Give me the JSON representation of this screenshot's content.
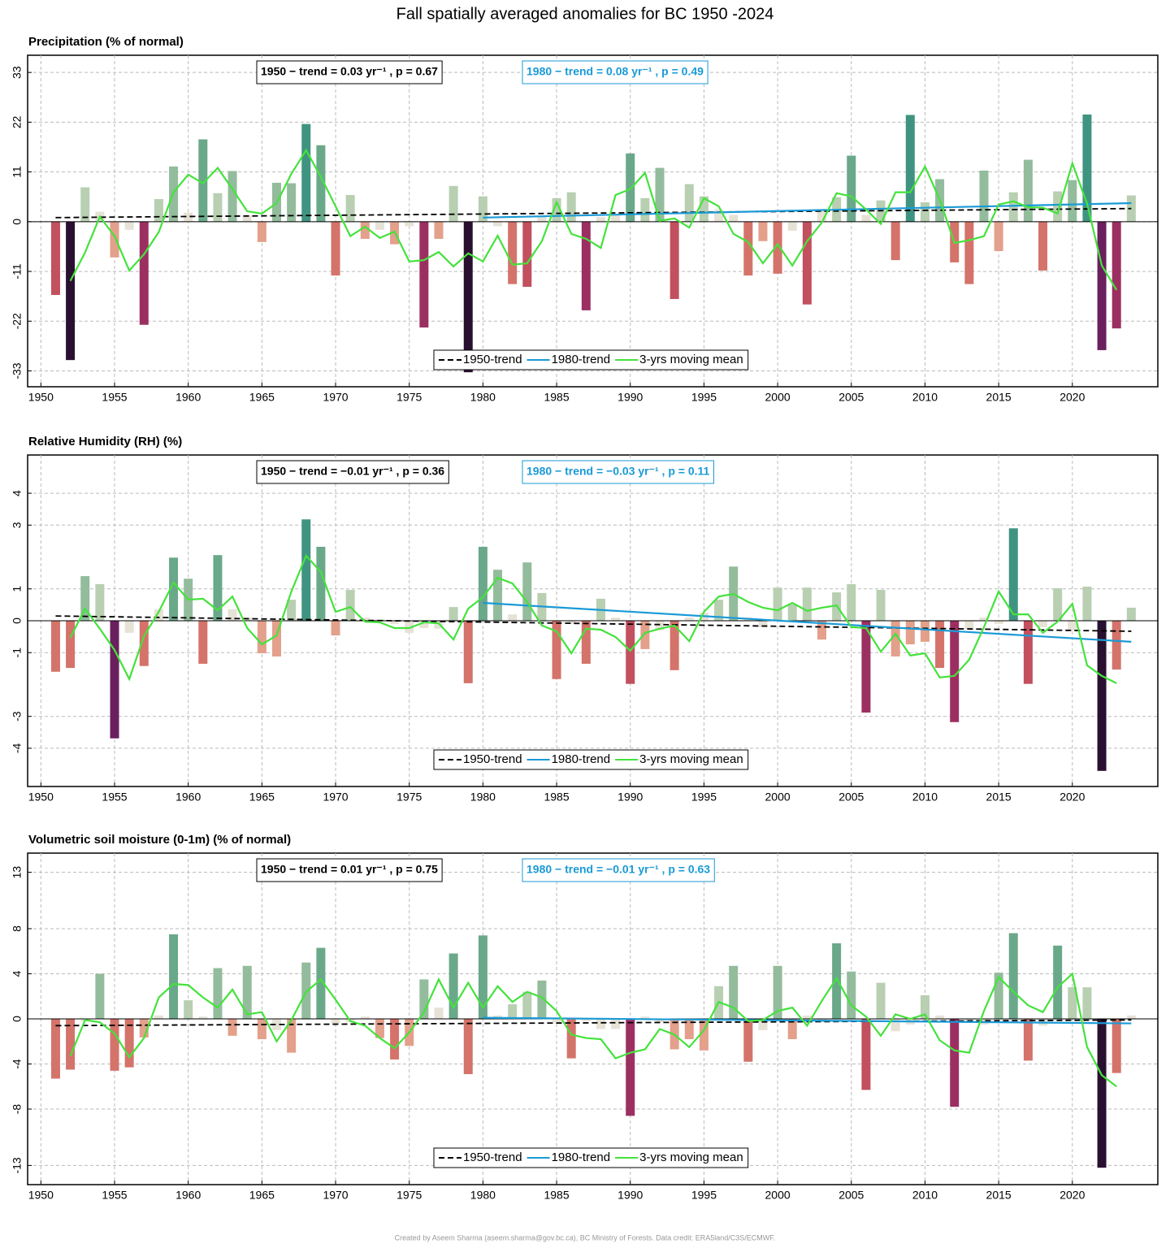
{
  "title": "Fall spatially averaged anomalies for BC 1950 -2024",
  "footer": "Created by Aseem Sharma (aseem.sharma@gov.bc.ca), BC Ministry of Forests. Data credit: ERA5land/C3S/ECMWF.",
  "chart_data": [
    {
      "type": "bar",
      "title": "Precipitation  (% of normal)",
      "x": [
        1951,
        1952,
        1953,
        1954,
        1955,
        1956,
        1957,
        1958,
        1959,
        1960,
        1961,
        1962,
        1963,
        1964,
        1965,
        1966,
        1967,
        1968,
        1969,
        1970,
        1971,
        1972,
        1973,
        1974,
        1975,
        1976,
        1977,
        1978,
        1979,
        1980,
        1981,
        1982,
        1983,
        1984,
        1985,
        1986,
        1987,
        1988,
        1989,
        1990,
        1991,
        1992,
        1993,
        1994,
        1995,
        1996,
        1997,
        1998,
        1999,
        2000,
        2001,
        2002,
        2003,
        2004,
        2005,
        2006,
        2007,
        2008,
        2009,
        2010,
        2011,
        2012,
        2013,
        2014,
        2015,
        2016,
        2017,
        2018,
        2019,
        2020,
        2021,
        2022,
        2023,
        2024
      ],
      "values": [
        -16.2,
        -30.6,
        7.6,
        2.2,
        -7.9,
        -1.8,
        -22.8,
        5.0,
        12.2,
        2.0,
        18.2,
        6.3,
        11.2,
        1.4,
        -4.5,
        8.6,
        8.5,
        21.6,
        16.9,
        -11.9,
        5.9,
        -3.8,
        -1.8,
        -5.0,
        -1.0,
        -23.4,
        -3.8,
        7.9,
        -33.3,
        5.6,
        -1.0,
        -13.8,
        -14.4,
        1.2,
        5.2,
        6.5,
        -19.6,
        1.0,
        1.5,
        15.1,
        5.2,
        11.9,
        -17.1,
        8.3,
        5.6,
        2.7,
        1.5,
        -11.9,
        -4.3,
        -11.5,
        -2.0,
        -18.3,
        2.5,
        5.4,
        14.6,
        1.5,
        4.7,
        -8.5,
        23.6,
        4.3,
        9.4,
        -9.0,
        -13.8,
        11.3,
        -6.5,
        6.5,
        13.7,
        -10.8,
        6.7,
        9.2,
        23.7,
        -28.4,
        -23.6,
        5.8
      ],
      "series": [
        {
          "name": "1950-trend",
          "color": "#000000",
          "style": "dashed",
          "x": [
            1951,
            2024
          ],
          "values": [
            0.9,
            2.9
          ]
        },
        {
          "name": "1980-trend",
          "color": "#1a9ad6",
          "style": "solid",
          "x": [
            1980,
            2024
          ],
          "values": [
            0.9,
            4.1
          ]
        },
        {
          "name": "3-yrs moving mean",
          "color": "#44e23c",
          "style": "solid",
          "values": [
            null,
            -13.1,
            -6.8,
            1.1,
            -3.2,
            -10.8,
            -7.2,
            -2.3,
            6.5,
            10.4,
            8.5,
            11.9,
            7.2,
            2.3,
            1.8,
            4.1,
            10.6,
            15.8,
            9.9,
            3.4,
            -3.2,
            -1.1,
            -3.6,
            -2.2,
            -8.8,
            -8.5,
            -6.7,
            -9.9,
            -7.0,
            -8.8,
            -3.1,
            -9.5,
            -9.2,
            -4.3,
            4.3,
            -2.7,
            -3.8,
            -5.8,
            5.9,
            7.2,
            10.8,
            0.2,
            0.7,
            -1.3,
            5.2,
            3.4,
            -2.7,
            -4.5,
            -9.2,
            -5.0,
            -9.7,
            -4.3,
            -0.2,
            6.3,
            5.6,
            2.7,
            -0.5,
            6.5,
            6.5,
            12.2,
            4.9,
            -4.7,
            -4.1,
            -3.2,
            3.8,
            4.5,
            3.2,
            3.1,
            1.8,
            12.9,
            4.0,
            -9.7,
            -15.1,
            null
          ]
        }
      ],
      "annotations": [
        {
          "text": "1950 − trend = 0.03 yr⁻¹ , p = 0.67",
          "color": "#000000"
        },
        {
          "text": "1980 − trend = 0.08 yr⁻¹ , p = 0.49",
          "color": "#1a9ad6"
        }
      ],
      "xlim": [
        1949.1,
        2025.8
      ],
      "xticks": [
        1950,
        1955,
        1960,
        1965,
        1970,
        1975,
        1980,
        1985,
        1990,
        1995,
        2000,
        2005,
        2010,
        2015,
        2020
      ],
      "ylim": [
        -36.5,
        36.8
      ],
      "yticks": [
        -33,
        -22,
        -11,
        0,
        11,
        22,
        33
      ],
      "grid": true,
      "zero_line": true,
      "legend": "bottom",
      "palette": [
        "#2a1030",
        "#6a1f5e",
        "#9c2f62",
        "#c2505e",
        "#d4736a",
        "#e3a08b",
        "#e6e2d6",
        "#b8cfb2",
        "#93bc9c",
        "#6aa88a",
        "#3f9481",
        "#1f7e76",
        "#1a5c6c"
      ]
    },
    {
      "type": "bar",
      "title": "Relative Humidity (RH)  (%)",
      "x": [
        1951,
        1952,
        1953,
        1954,
        1955,
        1956,
        1957,
        1958,
        1959,
        1960,
        1961,
        1962,
        1963,
        1964,
        1965,
        1966,
        1967,
        1968,
        1969,
        1970,
        1971,
        1972,
        1973,
        1974,
        1975,
        1976,
        1977,
        1978,
        1979,
        1980,
        1981,
        1982,
        1983,
        1984,
        1985,
        1986,
        1987,
        1988,
        1989,
        1990,
        1991,
        1992,
        1993,
        1994,
        1995,
        1996,
        1997,
        1998,
        1999,
        2000,
        2001,
        2002,
        2003,
        2004,
        2005,
        2006,
        2007,
        2008,
        2009,
        2010,
        2011,
        2012,
        2013,
        2014,
        2015,
        2016,
        2017,
        2018,
        2019,
        2020,
        2021,
        2022,
        2023,
        2024
      ],
      "values": [
        -1.6,
        -1.48,
        1.4,
        1.15,
        -3.69,
        -0.38,
        -1.42,
        0.36,
        1.98,
        1.32,
        -1.35,
        2.06,
        0.36,
        0.1,
        -1.02,
        -1.12,
        0.66,
        3.18,
        2.32,
        -0.46,
        0.97,
        0.1,
        0.05,
        -0.1,
        -0.38,
        -0.23,
        -0.25,
        0.43,
        -1.96,
        2.32,
        1.6,
        0.2,
        1.83,
        0.87,
        -1.83,
        -0.1,
        -1.35,
        0.69,
        0.1,
        -1.98,
        -0.89,
        -0.3,
        -1.55,
        0.1,
        0.25,
        0.66,
        1.7,
        0.1,
        -0.2,
        1.04,
        0.51,
        1.04,
        -0.59,
        0.89,
        1.15,
        -2.88,
        0.97,
        -1.12,
        -0.74,
        -0.66,
        -1.48,
        -3.18,
        -0.25,
        0.1,
        -0.1,
        2.9,
        -1.98,
        -0.2,
        1.02,
        -0.3,
        1.07,
        -4.71,
        -1.53,
        0.41
      ],
      "series": [
        {
          "name": "1950-trend",
          "color": "#000000",
          "style": "dashed",
          "x": [
            1951,
            2024
          ],
          "values": [
            0.15,
            -0.33
          ]
        },
        {
          "name": "1980-trend",
          "color": "#1a9ad6",
          "style": "solid",
          "x": [
            1980,
            2024
          ],
          "values": [
            0.56,
            -0.66
          ]
        },
        {
          "name": "3-yrs moving mean",
          "color": "#44e23c",
          "style": "solid",
          "values": [
            null,
            -0.53,
            0.38,
            -0.25,
            -0.92,
            -1.83,
            -0.48,
            0.28,
            1.2,
            0.66,
            0.69,
            0.33,
            0.76,
            -0.23,
            -0.74,
            -0.46,
            0.92,
            2.04,
            1.53,
            0.28,
            0.43,
            -0.03,
            -0.05,
            -0.23,
            -0.23,
            -0.05,
            -0.08,
            -0.59,
            0.38,
            0.74,
            1.35,
            1.17,
            0.59,
            -0.15,
            -0.33,
            -1.02,
            -0.25,
            -0.28,
            -0.51,
            -0.94,
            -0.38,
            -0.25,
            -0.15,
            -0.64,
            0.28,
            0.76,
            0.84,
            0.59,
            0.41,
            0.33,
            0.56,
            0.31,
            0.41,
            0.48,
            -0.2,
            -0.23,
            -0.97,
            -0.41,
            -1.09,
            -1.02,
            -1.78,
            -1.73,
            -1.22,
            -0.2,
            0.92,
            0.2,
            0.2,
            -0.38,
            -0.03,
            0.53,
            -1.4,
            -1.73,
            -1.96,
            null
          ]
        }
      ],
      "annotations": [
        {
          "text": "1950 − trend = −0.01 yr⁻¹ , p = 0.36",
          "color": "#000000"
        },
        {
          "text": "1980 − trend = −0.03 yr⁻¹ , p = 0.11",
          "color": "#1a9ad6"
        }
      ],
      "xlim": [
        1949.1,
        2025.8
      ],
      "xticks": [
        1950,
        1955,
        1960,
        1965,
        1970,
        1975,
        1980,
        1985,
        1990,
        1995,
        2000,
        2005,
        2010,
        2015,
        2020
      ],
      "ylim": [
        -5.2,
        5.2
      ],
      "yticks": [
        -4,
        -3,
        -1,
        0,
        1,
        3,
        4
      ],
      "grid": true,
      "zero_line": true,
      "legend": "bottom",
      "palette": [
        "#2a1030",
        "#6a1f5e",
        "#9c2f62",
        "#c2505e",
        "#d4736a",
        "#e3a08b",
        "#e6e2d6",
        "#b8cfb2",
        "#93bc9c",
        "#6aa88a",
        "#3f9481",
        "#1f7e76",
        "#1a5c6c"
      ]
    },
    {
      "type": "bar",
      "title": "Volumetric soil moisture (0-1m)  (% of normal)",
      "x": [
        1951,
        1952,
        1953,
        1954,
        1955,
        1956,
        1957,
        1958,
        1959,
        1960,
        1961,
        1962,
        1963,
        1964,
        1965,
        1966,
        1967,
        1968,
        1969,
        1970,
        1971,
        1972,
        1973,
        1974,
        1975,
        1976,
        1977,
        1978,
        1979,
        1980,
        1981,
        1982,
        1983,
        1984,
        1985,
        1986,
        1987,
        1988,
        1989,
        1990,
        1991,
        1992,
        1993,
        1994,
        1995,
        1996,
        1997,
        1998,
        1999,
        2000,
        2001,
        2002,
        2003,
        2004,
        2005,
        2006,
        2007,
        2008,
        2009,
        2010,
        2011,
        2012,
        2013,
        2014,
        2015,
        2016,
        2017,
        2018,
        2019,
        2020,
        2021,
        2022,
        2023,
        2024
      ],
      "values": [
        -5.3,
        -4.5,
        -0.2,
        4.0,
        -4.6,
        -4.3,
        -1.65,
        0.3,
        7.5,
        1.65,
        0.2,
        4.5,
        -1.5,
        4.7,
        -1.8,
        -1.0,
        -3.0,
        5.0,
        6.3,
        -0.4,
        -0.3,
        0.2,
        -1.7,
        -3.6,
        -2.4,
        3.5,
        1.0,
        5.8,
        -4.9,
        7.4,
        0.3,
        1.3,
        2.4,
        3.4,
        -0.3,
        -3.5,
        -0.2,
        -0.9,
        -0.9,
        -8.6,
        0.2,
        -0.3,
        -2.7,
        -1.8,
        -2.8,
        2.9,
        4.7,
        -3.8,
        -1.0,
        4.7,
        -1.8,
        0.3,
        -0.3,
        6.7,
        4.2,
        -6.3,
        3.2,
        -1.1,
        -0.5,
        2.1,
        0.3,
        -7.8,
        -0.3,
        -0.5,
        4.1,
        7.6,
        -3.7,
        -0.6,
        6.5,
        2.8,
        2.8,
        -13.2,
        -4.8,
        0.3
      ],
      "series": [
        {
          "name": "1950-trend",
          "color": "#000000",
          "style": "dashed",
          "x": [
            1951,
            2024
          ],
          "values": [
            -0.6,
            -0.1
          ]
        },
        {
          "name": "1980-trend",
          "color": "#1a9ad6",
          "style": "solid",
          "x": [
            1980,
            2024
          ],
          "values": [
            0.1,
            -0.4
          ]
        },
        {
          "name": "3-yrs moving mean",
          "color": "#44e23c",
          "style": "solid",
          "values": [
            null,
            -3.3,
            -0.1,
            -0.3,
            -1.3,
            -3.4,
            -1.7,
            1.9,
            3.1,
            3.0,
            1.9,
            1.0,
            2.6,
            0.4,
            0.6,
            -2.0,
            -0.1,
            2.4,
            3.5,
            1.7,
            -0.2,
            -0.6,
            -1.7,
            -2.6,
            -1.2,
            0.6,
            3.5,
            1.0,
            3.2,
            1.0,
            2.9,
            1.5,
            2.4,
            1.9,
            0.7,
            -1.4,
            -1.7,
            -1.8,
            -3.5,
            -3.0,
            -2.7,
            -0.9,
            -1.4,
            -2.5,
            -1.0,
            1.5,
            1.0,
            -0.2,
            -0.1,
            0.7,
            1.0,
            -0.6,
            1.6,
            3.6,
            1.2,
            0.2,
            -1.5,
            0.4,
            0.0,
            0.4,
            -1.9,
            -2.8,
            -3.0,
            0.7,
            3.7,
            2.4,
            1.2,
            0.6,
            2.8,
            4.0,
            -2.5,
            -5.0,
            -6.0,
            null
          ]
        }
      ],
      "annotations": [
        {
          "text": "1950 − trend = 0.01 yr⁻¹ , p = 0.75",
          "color": "#000000"
        },
        {
          "text": "1980 − trend = −0.01 yr⁻¹ , p = 0.63",
          "color": "#1a9ad6"
        }
      ],
      "xlim": [
        1949.1,
        2025.8
      ],
      "xticks": [
        1950,
        1955,
        1960,
        1965,
        1970,
        1975,
        1980,
        1985,
        1990,
        1995,
        2000,
        2005,
        2010,
        2015,
        2020
      ],
      "ylim": [
        -14.7,
        14.7
      ],
      "yticks": [
        -13,
        -8,
        -4,
        0,
        4,
        8,
        13
      ],
      "grid": true,
      "zero_line": true,
      "legend": "bottom",
      "palette": [
        "#2a1030",
        "#6a1f5e",
        "#9c2f62",
        "#c2505e",
        "#d4736a",
        "#e3a08b",
        "#e6e2d6",
        "#b8cfb2",
        "#93bc9c",
        "#6aa88a",
        "#3f9481",
        "#1f7e76",
        "#1a5c6c"
      ]
    }
  ]
}
